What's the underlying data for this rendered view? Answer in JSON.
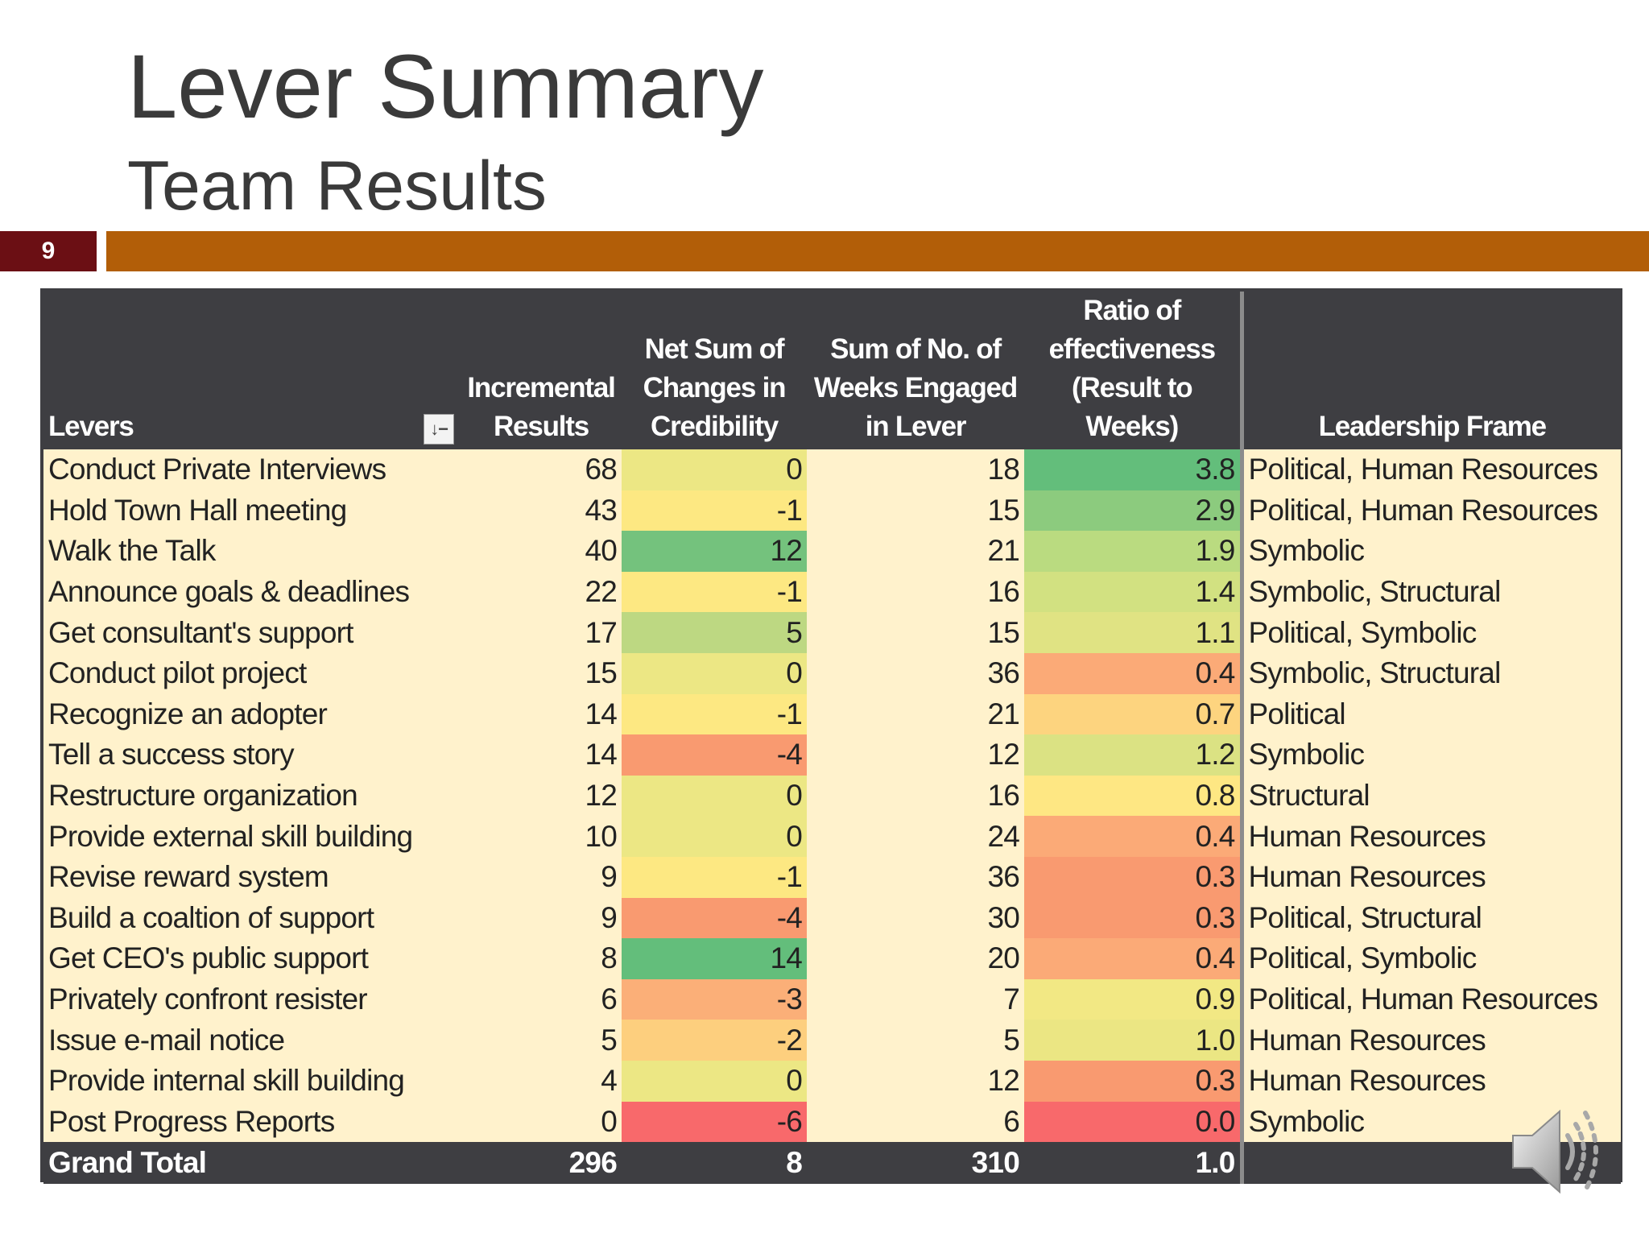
{
  "slide": {
    "title": "Lever Summary",
    "subtitle": "Team Results",
    "number": "9"
  },
  "colors": {
    "slide_number_bg": "#6b0f14",
    "band": "#b25e08",
    "header_bg": "#3e3e42",
    "neutral_cell": "#fff2cc"
  },
  "table": {
    "headers": {
      "levers": "Levers",
      "incremental": [
        "Incremental",
        "Results"
      ],
      "credibility": [
        "Net Sum of",
        "Changes in",
        "Credibility"
      ],
      "weeks": [
        "Sum of No. of",
        "Weeks Engaged",
        "in Lever"
      ],
      "ratio": [
        "Ratio of",
        "effectiveness",
        "(Result to",
        "Weeks)"
      ],
      "frame": "Leadership Frame"
    },
    "filter_icon": "sort-filter-icon",
    "rows": [
      {
        "lever": "Conduct Private Interviews",
        "results": "68",
        "credibility": "0",
        "weeks": "18",
        "ratio": "3.8",
        "frame": "Political, Human Resources",
        "cred_color": "#ece784",
        "ratio_color": "#63be7b"
      },
      {
        "lever": "Hold Town Hall meeting",
        "results": "43",
        "credibility": "-1",
        "weeks": "15",
        "ratio": "2.9",
        "frame": "Political, Human Resources",
        "cred_color": "#fde882",
        "ratio_color": "#8ccb7e"
      },
      {
        "lever": "Walk the Talk",
        "results": "40",
        "credibility": "12",
        "weeks": "21",
        "ratio": "1.9",
        "frame": "Symbolic",
        "cred_color": "#74c27d",
        "ratio_color": "#badb80"
      },
      {
        "lever": "Announce goals & deadlines",
        "results": "22",
        "credibility": "-1",
        "weeks": "16",
        "ratio": "1.4",
        "frame": "Symbolic, Structural",
        "cred_color": "#fde882",
        "ratio_color": "#d2e181"
      },
      {
        "lever": "Get consultant's support",
        "results": "17",
        "credibility": "5",
        "weeks": "15",
        "ratio": "1.1",
        "frame": "Political, Symbolic",
        "cred_color": "#bdd882",
        "ratio_color": "#e0e383"
      },
      {
        "lever": "Conduct pilot project",
        "results": "15",
        "credibility": "0",
        "weeks": "36",
        "ratio": "0.4",
        "frame": "Symbolic, Structural",
        "cred_color": "#ece784",
        "ratio_color": "#fbaa77"
      },
      {
        "lever": "Recognize an adopter",
        "results": "14",
        "credibility": "-1",
        "weeks": "21",
        "ratio": "0.7",
        "frame": "Political",
        "cred_color": "#fde882",
        "ratio_color": "#fdd47f"
      },
      {
        "lever": "Tell a success story",
        "results": "14",
        "credibility": "-4",
        "weeks": "12",
        "ratio": "1.2",
        "frame": "Symbolic",
        "cred_color": "#f99a70",
        "ratio_color": "#dbe283"
      },
      {
        "lever": "Restructure organization",
        "results": "12",
        "credibility": "0",
        "weeks": "16",
        "ratio": "0.8",
        "frame": "Structural",
        "cred_color": "#ece784",
        "ratio_color": "#fee783"
      },
      {
        "lever": "Provide external skill building",
        "results": "10",
        "credibility": "0",
        "weeks": "24",
        "ratio": "0.4",
        "frame": "Human Resources",
        "cred_color": "#ece784",
        "ratio_color": "#fbaa77"
      },
      {
        "lever": "Revise reward system",
        "results": "9",
        "credibility": "-1",
        "weeks": "36",
        "ratio": "0.3",
        "frame": "Human Resources",
        "cred_color": "#fde882",
        "ratio_color": "#f99a70"
      },
      {
        "lever": "Build a coaltion of support",
        "results": "9",
        "credibility": "-4",
        "weeks": "30",
        "ratio": "0.3",
        "frame": "Political, Structural",
        "cred_color": "#f99a70",
        "ratio_color": "#f99a70"
      },
      {
        "lever": "Get CEO's public support",
        "results": "8",
        "credibility": "14",
        "weeks": "20",
        "ratio": "0.4",
        "frame": "Political, Symbolic",
        "cred_color": "#63be7b",
        "ratio_color": "#fbaa77"
      },
      {
        "lever": "Privately confront resister",
        "results": "6",
        "credibility": "-3",
        "weeks": "7",
        "ratio": "0.9",
        "frame": "Political, Human Resources",
        "cred_color": "#fbaf78",
        "ratio_color": "#f2e884"
      },
      {
        "lever": "Issue e-mail notice",
        "results": "5",
        "credibility": "-2",
        "weeks": "5",
        "ratio": "1.0",
        "frame": "Human Resources",
        "cred_color": "#fdcf7e",
        "ratio_color": "#ebe683"
      },
      {
        "lever": "Provide internal skill building",
        "results": "4",
        "credibility": "0",
        "weeks": "12",
        "ratio": "0.3",
        "frame": "Human Resources",
        "cred_color": "#ece784",
        "ratio_color": "#f99a70"
      },
      {
        "lever": "Post Progress Reports",
        "results": "0",
        "credibility": "-6",
        "weeks": "6",
        "ratio": "0.0",
        "frame": "Symbolic",
        "cred_color": "#f8696b",
        "ratio_color": "#f8696b"
      }
    ],
    "total": {
      "label": "Grand Total",
      "results": "296",
      "credibility": "8",
      "weeks": "310",
      "ratio": "1.0"
    }
  },
  "audio_icon": "speaker-icon"
}
